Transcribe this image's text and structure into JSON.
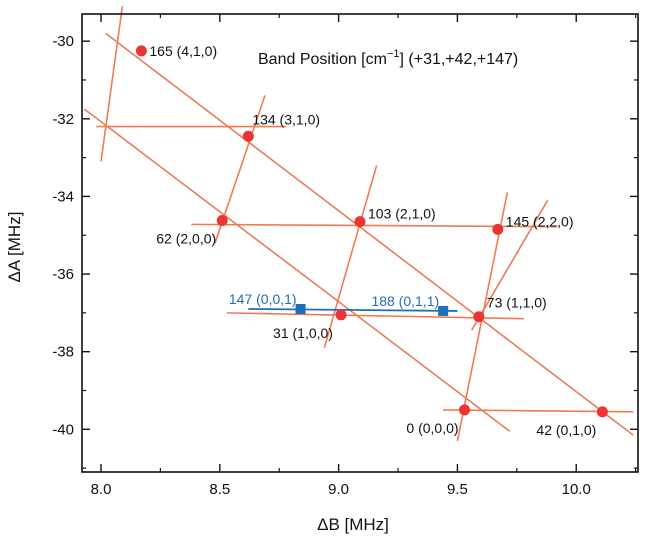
{
  "chart_data": {
    "type": "scatter",
    "title": "Band Position [cm",
    "title_sup": "−1",
    "title_tail": "] (+31,+42,+147)",
    "xlabel": "ΔB [MHz]",
    "ylabel": "ΔA [MHz]",
    "xlim": [
      7.92,
      10.26
    ],
    "ylim": [
      -41.1,
      -29.3
    ],
    "xticks": [
      {
        "v": 8.0,
        "label": "8.0"
      },
      {
        "v": 8.5,
        "label": "8.5"
      },
      {
        "v": 9.0,
        "label": "9.0"
      },
      {
        "v": 9.5,
        "label": "9.5"
      },
      {
        "v": 10.0,
        "label": "10.0"
      }
    ],
    "yticks": [
      {
        "v": -30,
        "label": "-30"
      },
      {
        "v": -32,
        "label": "-32"
      },
      {
        "v": -34,
        "label": "-34"
      },
      {
        "v": -36,
        "label": "-36"
      },
      {
        "v": -38,
        "label": "-38"
      },
      {
        "v": -40,
        "label": "-40"
      }
    ],
    "colors": {
      "bands": "#f15a4a",
      "lines": "#f07a55",
      "blue": "#1f6fb5",
      "axis": "#111111"
    },
    "series": [
      {
        "marker": "circle",
        "color": "#ee3333",
        "points": [
          {
            "x": 8.17,
            "y": -30.25,
            "label": "165 (4,1,0)",
            "anchor": "start",
            "dx": 8,
            "dy": 0
          },
          {
            "x": 8.62,
            "y": -32.45,
            "label": "134 (3,1,0)",
            "anchor": "start",
            "dx": 4,
            "dy": -17
          },
          {
            "x": 8.51,
            "y": -34.62,
            "label": "62 (2,0,0)",
            "anchor": "end",
            "dx": -6,
            "dy": 18
          },
          {
            "x": 9.09,
            "y": -34.65,
            "label": "103 (2,1,0)",
            "anchor": "start",
            "dx": 8,
            "dy": -8
          },
          {
            "x": 9.67,
            "y": -34.85,
            "label": "145 (2,2,0)",
            "anchor": "start",
            "dx": 8,
            "dy": -8
          },
          {
            "x": 9.01,
            "y": -37.05,
            "label": "31 (1,0,0)",
            "anchor": "end",
            "dx": -8,
            "dy": 18
          },
          {
            "x": 9.59,
            "y": -37.1,
            "label": "73 (1,1,0)",
            "anchor": "start",
            "dx": 8,
            "dy": -14
          },
          {
            "x": 9.53,
            "y": -39.5,
            "label": "0 (0,0,0)",
            "anchor": "end",
            "dx": -6,
            "dy": 18
          },
          {
            "x": 10.11,
            "y": -39.55,
            "label": "42 (0,1,0)",
            "anchor": "end",
            "dx": -6,
            "dy": 18
          }
        ]
      },
      {
        "marker": "square",
        "color": "#1f6fb5",
        "points": [
          {
            "x": 8.84,
            "y": -36.9,
            "label": "147 (0,0,1)",
            "anchor": "end",
            "dx": -4,
            "dy": -10
          },
          {
            "x": 9.44,
            "y": -36.95,
            "label": "188 (0,1,1)",
            "anchor": "end",
            "dx": -4,
            "dy": -10
          }
        ]
      }
    ],
    "lines": [
      {
        "color": "#f07a55",
        "x": [
          8.09,
          8.0
        ],
        "y": [
          -29.1,
          -33.1
        ]
      },
      {
        "color": "#f07a55",
        "x": [
          7.98,
          8.78
        ],
        "y": [
          -32.2,
          -32.2
        ]
      },
      {
        "color": "#f07a55",
        "x": [
          8.69,
          8.48
        ],
        "y": [
          -31.4,
          -35.2
        ]
      },
      {
        "color": "#f07a55",
        "x": [
          8.38,
          9.92
        ],
        "y": [
          -34.72,
          -34.78
        ]
      },
      {
        "color": "#f07a55",
        "x": [
          9.16,
          8.94
        ],
        "y": [
          -33.2,
          -37.9
        ]
      },
      {
        "color": "#f07a55",
        "x": [
          9.71,
          9.5
        ],
        "y": [
          -33.9,
          -40.3
        ]
      },
      {
        "color": "#f07a55",
        "x": [
          9.88,
          9.56
        ],
        "y": [
          -34.1,
          -37.45
        ]
      },
      {
        "color": "#f07a55",
        "x": [
          8.53,
          9.78
        ],
        "y": [
          -37.0,
          -37.15
        ]
      },
      {
        "color": "#f07a55",
        "x": [
          9.44,
          10.24
        ],
        "y": [
          -39.5,
          -39.55
        ]
      },
      {
        "color": "#f07a55",
        "x": [
          8.02,
          10.24
        ],
        "y": [
          -29.8,
          -40.15
        ]
      },
      {
        "color": "#f07a55",
        "x": [
          7.93,
          9.72
        ],
        "y": [
          -31.75,
          -40.05
        ]
      },
      {
        "color": "#1f6fb5",
        "x": [
          8.62,
          9.5
        ],
        "y": [
          -36.9,
          -36.95
        ]
      }
    ]
  }
}
